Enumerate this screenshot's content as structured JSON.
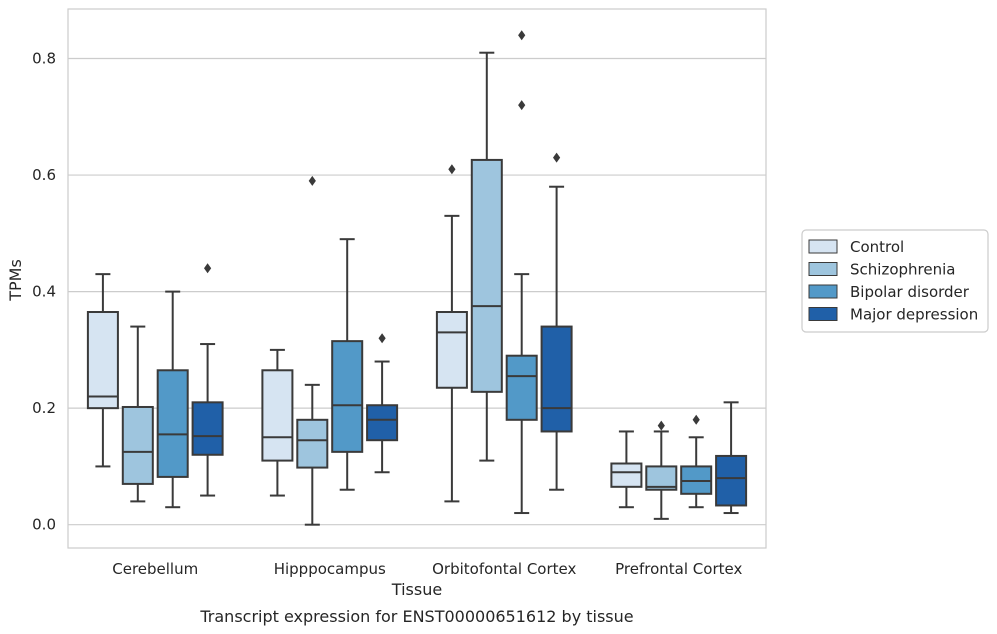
{
  "chart_data": {
    "type": "box",
    "xlabel": "Tissue",
    "ylabel": "TPMs",
    "caption": "Transcript expression for ENST00000651612 by tissue",
    "ylim": [
      -0.04,
      0.885
    ],
    "yticks": [
      0.0,
      0.2,
      0.4,
      0.6,
      0.8
    ],
    "ytick_labels": [
      "0.0",
      "0.2",
      "0.4",
      "0.6",
      "0.8"
    ],
    "categories": [
      "Cerebellum",
      "Hipppocampus",
      "Orbitofontal Cortex",
      "Prefrontal Cortex"
    ],
    "grid": true,
    "legend_position": "right",
    "series": [
      {
        "name": "Control",
        "color": "#d6e4f2",
        "boxes": [
          {
            "whislo": 0.1,
            "q1": 0.2,
            "med": 0.22,
            "q3": 0.365,
            "whishi": 0.43,
            "fliers": []
          },
          {
            "whislo": 0.05,
            "q1": 0.11,
            "med": 0.15,
            "q3": 0.265,
            "whishi": 0.3,
            "fliers": []
          },
          {
            "whislo": 0.04,
            "q1": 0.235,
            "med": 0.33,
            "q3": 0.365,
            "whishi": 0.53,
            "fliers": [
              0.61
            ]
          },
          {
            "whislo": 0.03,
            "q1": 0.065,
            "med": 0.09,
            "q3": 0.105,
            "whishi": 0.16,
            "fliers": []
          }
        ]
      },
      {
        "name": "Schizophrenia",
        "color": "#9ec5de",
        "boxes": [
          {
            "whislo": 0.04,
            "q1": 0.07,
            "med": 0.125,
            "q3": 0.202,
            "whishi": 0.34,
            "fliers": []
          },
          {
            "whislo": 0.0,
            "q1": 0.098,
            "med": 0.145,
            "q3": 0.18,
            "whishi": 0.24,
            "fliers": [
              0.59
            ]
          },
          {
            "whislo": 0.11,
            "q1": 0.228,
            "med": 0.375,
            "q3": 0.626,
            "whishi": 0.81,
            "fliers": []
          },
          {
            "whislo": 0.01,
            "q1": 0.06,
            "med": 0.065,
            "q3": 0.1,
            "whishi": 0.16,
            "fliers": [
              0.17
            ]
          }
        ]
      },
      {
        "name": "Bipolar disorder",
        "color": "#5299c8",
        "boxes": [
          {
            "whislo": 0.03,
            "q1": 0.082,
            "med": 0.155,
            "q3": 0.265,
            "whishi": 0.4,
            "fliers": []
          },
          {
            "whislo": 0.06,
            "q1": 0.125,
            "med": 0.205,
            "q3": 0.315,
            "whishi": 0.49,
            "fliers": []
          },
          {
            "whislo": 0.02,
            "q1": 0.18,
            "med": 0.255,
            "q3": 0.29,
            "whishi": 0.43,
            "fliers": [
              0.72,
              0.84
            ]
          },
          {
            "whislo": 0.03,
            "q1": 0.053,
            "med": 0.075,
            "q3": 0.1,
            "whishi": 0.15,
            "fliers": [
              0.18
            ]
          }
        ]
      },
      {
        "name": "Major depression",
        "color": "#2060a8",
        "boxes": [
          {
            "whislo": 0.05,
            "q1": 0.12,
            "med": 0.152,
            "q3": 0.21,
            "whishi": 0.31,
            "fliers": [
              0.44
            ]
          },
          {
            "whislo": 0.09,
            "q1": 0.145,
            "med": 0.18,
            "q3": 0.205,
            "whishi": 0.28,
            "fliers": [
              0.32
            ]
          },
          {
            "whislo": 0.06,
            "q1": 0.16,
            "med": 0.2,
            "q3": 0.34,
            "whishi": 0.58,
            "fliers": [
              0.63
            ]
          },
          {
            "whislo": 0.02,
            "q1": 0.033,
            "med": 0.08,
            "q3": 0.118,
            "whishi": 0.21,
            "fliers": []
          }
        ]
      }
    ]
  }
}
